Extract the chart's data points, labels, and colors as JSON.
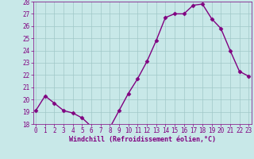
{
  "x": [
    0,
    1,
    2,
    3,
    4,
    5,
    6,
    7,
    8,
    9,
    10,
    11,
    12,
    13,
    14,
    15,
    16,
    17,
    18,
    19,
    20,
    21,
    22,
    23
  ],
  "y": [
    19.1,
    20.3,
    19.7,
    19.1,
    18.9,
    18.5,
    17.8,
    17.7,
    17.7,
    19.1,
    20.5,
    21.7,
    23.1,
    24.8,
    26.7,
    27.0,
    27.0,
    27.7,
    27.8,
    26.6,
    25.8,
    24.0,
    22.3,
    21.9
  ],
  "line_color": "#800080",
  "marker": "D",
  "marker_size": 2.5,
  "bg_color": "#c8e8e8",
  "grid_color": "#a0c8c8",
  "ylim": [
    18,
    28
  ],
  "yticks": [
    18,
    19,
    20,
    21,
    22,
    23,
    24,
    25,
    26,
    27,
    28
  ],
  "xticks": [
    0,
    1,
    2,
    3,
    4,
    5,
    6,
    7,
    8,
    9,
    10,
    11,
    12,
    13,
    14,
    15,
    16,
    17,
    18,
    19,
    20,
    21,
    22,
    23
  ],
  "xlabel": "Windchill (Refroidissement éolien,°C)",
  "xlabel_color": "#800080",
  "tick_color": "#800080",
  "line_width": 1.0
}
